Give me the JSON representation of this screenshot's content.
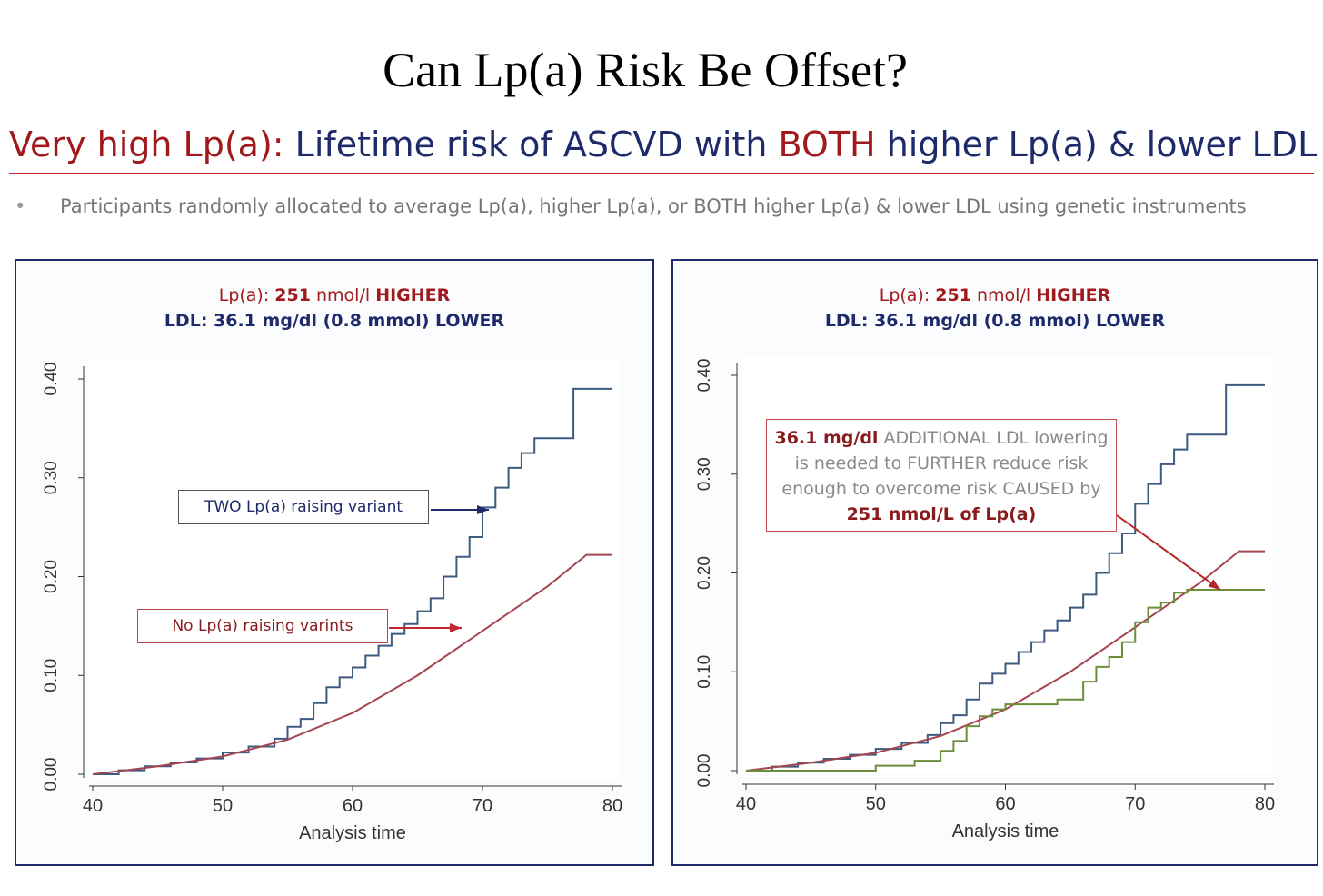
{
  "page": {
    "title": "Can Lp(a) Risk Be Offset?",
    "subtitle_prefix": "Very high Lp(a):",
    "subtitle_mid": " Lifetime risk of ASCVD with ",
    "subtitle_both": "BOTH",
    "subtitle_end": " higher Lp(a) & lower LDL",
    "bullet_marker": "•",
    "bullet_text": "Participants randomly allocated to average Lp(a), higher Lp(a), or BOTH higher Lp(a) & lower LDL using genetic instruments"
  },
  "colors": {
    "navy": "#1f2a6b",
    "dark_red": "#a0191c",
    "blue_series": "#3d5a80",
    "red_series": "#a5454f",
    "green_series": "#6b8e3a"
  },
  "panels": {
    "left": {
      "head_line1_a": "Lp(a): ",
      "head_line1_b": "251",
      "head_line1_c": " nmol/l ",
      "head_line1_d": "HIGHER",
      "head_line2": "LDL: 36.1 mg/dl (0.8 mmol) LOWER",
      "callout_two": "TWO Lp(a) raising variant",
      "callout_no": "No Lp(a) raising varints"
    },
    "right": {
      "head_line1_a": "Lp(a): ",
      "head_line1_b": "251",
      "head_line1_c": " nmol/l ",
      "head_line1_d": "HIGHER",
      "head_line2": "LDL: 36.1 mg/dl (0.8 mmol) LOWER",
      "callout_l1_strong": "36.1 mg/dl",
      "callout_l1_rest": " ADDITIONAL LDL lowering",
      "callout_l2": "is needed to FURTHER reduce risk",
      "callout_l3": "enough to overcome risk CAUSED by",
      "callout_l4": "251 nmol/L of Lp(a)"
    }
  },
  "chart_data": [
    {
      "type": "line",
      "xlabel": "Analysis time",
      "ylabel": "",
      "xlim": [
        40,
        80
      ],
      "ylim": [
        0,
        0.4
      ],
      "xticks": [
        40,
        50,
        60,
        70,
        80
      ],
      "yticks": [
        "0.00",
        "0.10",
        "0.20",
        "0.30",
        "0.40"
      ],
      "series": [
        {
          "name": "TWO Lp(a) raising variant",
          "step": true,
          "color": "#3d5a80",
          "x": [
            40,
            42,
            44,
            46,
            48,
            50,
            52,
            54,
            55,
            56,
            57,
            58,
            59,
            60,
            61,
            62,
            63,
            64,
            65,
            66,
            67,
            68,
            69,
            70,
            71,
            72,
            73,
            74,
            75,
            77,
            80
          ],
          "y": [
            0.0,
            0.004,
            0.008,
            0.012,
            0.016,
            0.022,
            0.028,
            0.036,
            0.048,
            0.056,
            0.072,
            0.088,
            0.098,
            0.108,
            0.12,
            0.13,
            0.142,
            0.152,
            0.165,
            0.178,
            0.2,
            0.22,
            0.24,
            0.27,
            0.29,
            0.31,
            0.325,
            0.34,
            0.34,
            0.39,
            0.39
          ]
        },
        {
          "name": "No Lp(a) raising varints",
          "step": false,
          "color": "#a5454f",
          "x": [
            40,
            45,
            50,
            55,
            60,
            65,
            70,
            75,
            78,
            80
          ],
          "y": [
            0.0,
            0.008,
            0.018,
            0.035,
            0.062,
            0.1,
            0.145,
            0.19,
            0.222,
            0.222
          ]
        }
      ]
    },
    {
      "type": "line",
      "xlabel": "Analysis time",
      "ylabel": "",
      "xlim": [
        40,
        80
      ],
      "ylim": [
        0,
        0.4
      ],
      "xticks": [
        40,
        50,
        60,
        70,
        80
      ],
      "yticks": [
        "0.00",
        "0.10",
        "0.20",
        "0.30",
        "0.40"
      ],
      "series": [
        {
          "step": true,
          "color": "#3d5a80",
          "x": [
            40,
            42,
            44,
            46,
            48,
            50,
            52,
            54,
            55,
            56,
            57,
            58,
            59,
            60,
            61,
            62,
            63,
            64,
            65,
            66,
            67,
            68,
            69,
            70,
            71,
            72,
            73,
            74,
            75,
            77,
            80
          ],
          "y": [
            0.0,
            0.004,
            0.008,
            0.012,
            0.016,
            0.022,
            0.028,
            0.036,
            0.048,
            0.056,
            0.072,
            0.088,
            0.098,
            0.108,
            0.12,
            0.13,
            0.142,
            0.152,
            0.165,
            0.178,
            0.2,
            0.22,
            0.24,
            0.27,
            0.29,
            0.31,
            0.325,
            0.34,
            0.34,
            0.39,
            0.39
          ]
        },
        {
          "step": false,
          "color": "#a5454f",
          "x": [
            40,
            45,
            50,
            55,
            60,
            65,
            70,
            75,
            78,
            80
          ],
          "y": [
            0.0,
            0.008,
            0.018,
            0.035,
            0.062,
            0.1,
            0.145,
            0.19,
            0.222,
            0.222
          ]
        },
        {
          "step": true,
          "color": "#6b8e3a",
          "x": [
            40,
            45,
            50,
            53,
            55,
            56,
            57,
            58,
            59,
            60,
            62,
            64,
            66,
            67,
            68,
            69,
            70,
            71,
            72,
            73,
            74,
            80
          ],
          "y": [
            0.0,
            0.0,
            0.005,
            0.01,
            0.02,
            0.03,
            0.045,
            0.055,
            0.062,
            0.067,
            0.067,
            0.072,
            0.09,
            0.105,
            0.115,
            0.13,
            0.15,
            0.165,
            0.17,
            0.18,
            0.183,
            0.183
          ]
        }
      ]
    }
  ]
}
